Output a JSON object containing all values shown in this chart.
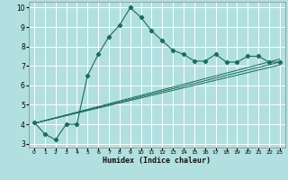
{
  "title": "",
  "xlabel": "Humidex (Indice chaleur)",
  "xlim": [
    -0.5,
    23.5
  ],
  "ylim": [
    2.8,
    10.3
  ],
  "yticks": [
    3,
    4,
    5,
    6,
    7,
    8,
    9,
    10
  ],
  "xticks": [
    0,
    1,
    2,
    3,
    4,
    5,
    6,
    7,
    8,
    9,
    10,
    11,
    12,
    13,
    14,
    15,
    16,
    17,
    18,
    19,
    20,
    21,
    22,
    23
  ],
  "bg_color": "#b2e0e0",
  "grid_color": "#ffffff",
  "line_color": "#1a6b5a",
  "main_x": [
    0,
    1,
    2,
    3,
    4,
    5,
    6,
    7,
    8,
    9,
    10,
    11,
    12,
    13,
    14,
    15,
    16,
    17,
    18,
    19,
    20,
    21,
    22,
    23
  ],
  "main_y": [
    4.1,
    3.5,
    3.2,
    4.0,
    4.0,
    6.5,
    7.6,
    8.5,
    9.1,
    10.0,
    9.5,
    8.8,
    8.3,
    7.8,
    7.6,
    7.25,
    7.25,
    7.6,
    7.2,
    7.2,
    7.5,
    7.5,
    7.2,
    7.2
  ],
  "line1_x": [
    0,
    23
  ],
  "line1_y": [
    4.05,
    7.05
  ],
  "line2_x": [
    0,
    23
  ],
  "line2_y": [
    4.05,
    7.2
  ],
  "line3_x": [
    0,
    23
  ],
  "line3_y": [
    4.05,
    7.35
  ]
}
